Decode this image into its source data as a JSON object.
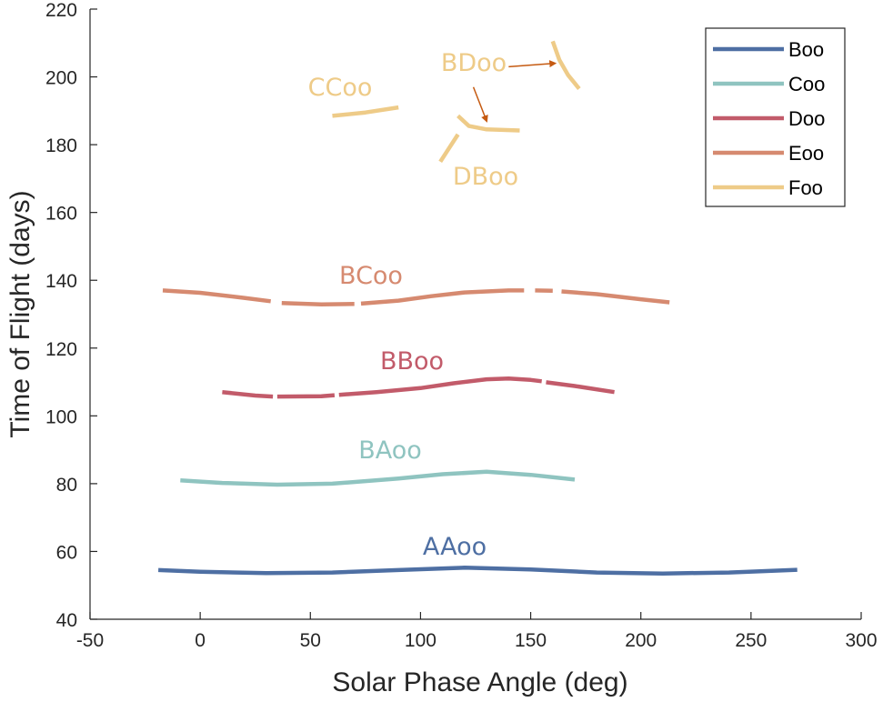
{
  "chart_data": {
    "type": "line",
    "xlabel": "Solar Phase Angle (deg)",
    "ylabel": "Time of Flight (days)",
    "xlim": [
      -50,
      300
    ],
    "ylim": [
      40,
      220
    ],
    "xticks": [
      -50,
      0,
      50,
      100,
      150,
      200,
      250,
      300
    ],
    "yticks": [
      40,
      60,
      80,
      100,
      120,
      140,
      160,
      180,
      200,
      220
    ],
    "grid": false,
    "legend_position": "top-right",
    "legend": [
      {
        "name": "Boo",
        "color": "#4E6FA3"
      },
      {
        "name": "Coo",
        "color": "#8FC4C0"
      },
      {
        "name": "Doo",
        "color": "#C25B6A"
      },
      {
        "name": "Eoo",
        "color": "#D68A70"
      },
      {
        "name": "Foo",
        "color": "#EECB88"
      }
    ],
    "series": [
      {
        "name": "Boo",
        "color": "#4E6FA3",
        "label": "AAoo",
        "segments": [
          [
            [
              -19,
              54.5
            ],
            [
              0,
              54
            ],
            [
              30,
              53.6
            ],
            [
              60,
              53.8
            ],
            [
              90,
              54.5
            ],
            [
              120,
              55.2
            ],
            [
              150,
              54.7
            ],
            [
              180,
              53.8
            ],
            [
              210,
              53.5
            ],
            [
              240,
              53.8
            ],
            [
              271,
              54.6
            ]
          ]
        ]
      },
      {
        "name": "Coo",
        "color": "#8FC4C0",
        "label": "BAoo",
        "segments": [
          [
            [
              -9,
              81
            ],
            [
              10,
              80.2
            ],
            [
              35,
              79.7
            ],
            [
              60,
              80
            ],
            [
              90,
              81.5
            ],
            [
              110,
              82.8
            ],
            [
              130,
              83.5
            ],
            [
              150,
              82.6
            ],
            [
              170,
              81.2
            ]
          ]
        ]
      },
      {
        "name": "Doo",
        "color": "#C25B6A",
        "label": "BBoo",
        "segments": [
          [
            [
              10,
              107
            ],
            [
              25,
              106
            ],
            [
              33,
              105.7
            ]
          ],
          [
            [
              35,
              105.7
            ],
            [
              55,
              105.8
            ],
            [
              61,
              106.1
            ]
          ],
          [
            [
              63,
              106.2
            ],
            [
              80,
              107
            ],
            [
              100,
              108.2
            ],
            [
              115,
              109.6
            ],
            [
              130,
              110.8
            ],
            [
              140,
              111
            ],
            [
              150,
              110.6
            ],
            [
              155,
              110.2
            ]
          ],
          [
            [
              157,
              109.9
            ],
            [
              170,
              108.8
            ],
            [
              188,
              107
            ]
          ]
        ]
      },
      {
        "name": "Eoo",
        "color": "#D68A70",
        "label": "BCoo",
        "segments": [
          [
            [
              -17,
              137
            ],
            [
              0,
              136.3
            ],
            [
              20,
              134.8
            ],
            [
              32,
              133.8
            ]
          ],
          [
            [
              37,
              133.3
            ],
            [
              55,
              132.9
            ],
            [
              70,
              133
            ]
          ],
          [
            [
              73,
              133.1
            ],
            [
              90,
              134
            ],
            [
              105,
              135.3
            ],
            [
              120,
              136.4
            ],
            [
              140,
              137
            ],
            [
              147,
              137
            ]
          ],
          [
            [
              152,
              137
            ],
            [
              160,
              136.9
            ]
          ],
          [
            [
              164,
              136.7
            ],
            [
              180,
              135.9
            ],
            [
              200,
              134.4
            ],
            [
              213,
              133.5
            ]
          ]
        ]
      },
      {
        "name": "Foo",
        "color": "#EECB88",
        "label": "CCoo",
        "segments": [
          [
            [
              60,
              188.5
            ],
            [
              75,
              189.5
            ],
            [
              90,
              191
            ]
          ]
        ]
      },
      {
        "name": "Foo",
        "color": "#EECB88",
        "label": "BDoo",
        "segments": [
          [
            [
              160,
              210.5
            ],
            [
              163,
              205
            ],
            [
              167,
              200.5
            ],
            [
              172,
              196.5
            ]
          ]
        ]
      },
      {
        "name": "Foo",
        "color": "#EECB88",
        "label": "DBoo",
        "segments": [
          [
            [
              117,
              188.5
            ],
            [
              122,
              185.5
            ],
            [
              130,
              184.5
            ],
            [
              145,
              184.2
            ]
          ],
          [
            [
              117,
              183
            ],
            [
              113,
              179
            ],
            [
              109,
              175
            ]
          ]
        ]
      }
    ],
    "annotations": [
      {
        "text": "AAoo",
        "color": "#4E6FA3"
      },
      {
        "text": "BAoo",
        "color": "#8FC4C0"
      },
      {
        "text": "BBoo",
        "color": "#C25B6A"
      },
      {
        "text": "BCoo",
        "color": "#D68A70"
      },
      {
        "text": "CCoo",
        "color": "#EECB88"
      },
      {
        "text": "BDoo",
        "color": "#EECB88"
      },
      {
        "text": "DBoo",
        "color": "#EECB88"
      }
    ],
    "arrows": [
      {
        "from": [
          140,
          203
        ],
        "to": [
          161,
          204
        ],
        "color": "#C55A11"
      },
      {
        "from": [
          124,
          197
        ],
        "to": [
          130,
          187
        ],
        "color": "#C55A11"
      }
    ]
  }
}
